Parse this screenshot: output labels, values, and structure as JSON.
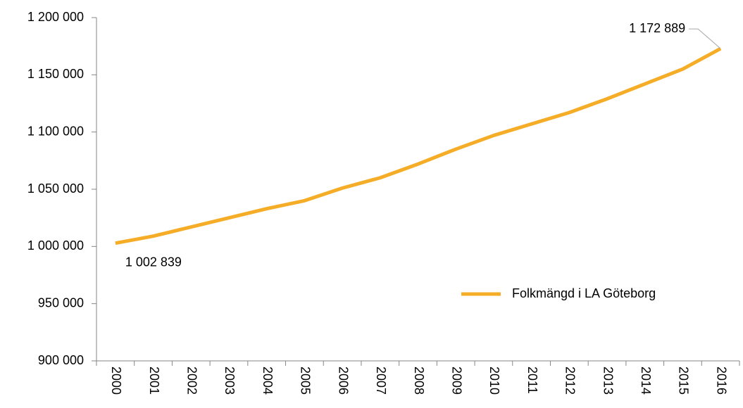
{
  "chart_data": {
    "type": "line",
    "categories": [
      "2000",
      "2001",
      "2002",
      "2003",
      "2004",
      "2005",
      "2006",
      "2007",
      "2008",
      "2009",
      "2010",
      "2011",
      "2012",
      "2013",
      "2014",
      "2015",
      "2016"
    ],
    "series": [
      {
        "name": "Folkmängd i LA Göteborg",
        "color": "#f5ad27",
        "values": [
          1002839,
          1009000,
          1017000,
          1025000,
          1033000,
          1040000,
          1051000,
          1060000,
          1072000,
          1085000,
          1097000,
          1107000,
          1117000,
          1129000,
          1142000,
          1155000,
          1172889
        ],
        "value_labels": [
          "1 002 839",
          null,
          null,
          null,
          null,
          null,
          null,
          null,
          null,
          null,
          null,
          null,
          null,
          null,
          null,
          null,
          "1 172 889"
        ]
      }
    ],
    "ylim": [
      900000,
      1200000
    ],
    "yticks": [
      {
        "value": 900000,
        "label": "900 000"
      },
      {
        "value": 950000,
        "label": "950 000"
      },
      {
        "value": 1000000,
        "label": "1 000 000"
      },
      {
        "value": 1050000,
        "label": "1 050 000"
      },
      {
        "value": 1100000,
        "label": "1 100 000"
      },
      {
        "value": 1150000,
        "label": "1 150 000"
      },
      {
        "value": 1200000,
        "label": "1 200 000"
      }
    ],
    "grid": false,
    "legend": "right"
  }
}
